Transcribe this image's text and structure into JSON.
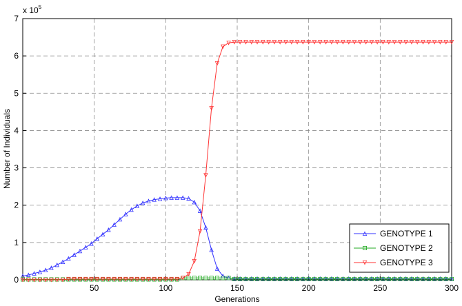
{
  "chart_data": {
    "type": "line",
    "xlabel": "Generations",
    "ylabel": "Number of Individuals",
    "y_multiplier": {
      "base": "x 10",
      "exponent": "5"
    },
    "xlim": [
      0,
      300
    ],
    "xticks": [
      50,
      100,
      150,
      200,
      250,
      300
    ],
    "ylim": [
      0,
      7
    ],
    "yticks": [
      0,
      1,
      2,
      3,
      4,
      5,
      6,
      7
    ],
    "grid": true,
    "legend": "lower right",
    "x": [
      0,
      4,
      8,
      12,
      16,
      20,
      24,
      28,
      32,
      36,
      40,
      44,
      48,
      52,
      56,
      60,
      64,
      68,
      72,
      76,
      80,
      84,
      88,
      92,
      96,
      100,
      104,
      108,
      112,
      116,
      120,
      124,
      128,
      132,
      136,
      140,
      144,
      148,
      152,
      156,
      160,
      164,
      168,
      172,
      176,
      180,
      184,
      188,
      192,
      196,
      200,
      204,
      208,
      212,
      216,
      220,
      224,
      228,
      232,
      236,
      240,
      244,
      248,
      252,
      256,
      260,
      264,
      268,
      272,
      276,
      280,
      284,
      288,
      292,
      296,
      300
    ],
    "series": [
      {
        "name": "GENOTYPE 1",
        "color": "#3333ff",
        "marker": "triangle-up",
        "values": [
          0.1,
          0.13,
          0.17,
          0.21,
          0.26,
          0.32,
          0.4,
          0.48,
          0.57,
          0.67,
          0.77,
          0.87,
          0.97,
          1.1,
          1.22,
          1.34,
          1.48,
          1.62,
          1.76,
          1.88,
          1.98,
          2.06,
          2.11,
          2.15,
          2.17,
          2.19,
          2.2,
          2.2,
          2.2,
          2.18,
          2.08,
          1.85,
          1.4,
          0.8,
          0.3,
          0.1,
          0.05,
          0.03,
          0.03,
          0.03,
          0.03,
          0.03,
          0.03,
          0.03,
          0.03,
          0.03,
          0.03,
          0.03,
          0.03,
          0.03,
          0.03,
          0.03,
          0.03,
          0.03,
          0.03,
          0.03,
          0.03,
          0.03,
          0.03,
          0.03,
          0.03,
          0.03,
          0.03,
          0.03,
          0.03,
          0.03,
          0.03,
          0.03,
          0.03,
          0.03,
          0.03,
          0.03,
          0.03,
          0.03,
          0.03,
          0.03
        ]
      },
      {
        "name": "GENOTYPE 2",
        "color": "#22aa22",
        "marker": "square",
        "values": [
          0.01,
          0.01,
          0.01,
          0.01,
          0.01,
          0.01,
          0.01,
          0.01,
          0.01,
          0.01,
          0.01,
          0.01,
          0.01,
          0.01,
          0.01,
          0.01,
          0.01,
          0.01,
          0.01,
          0.01,
          0.01,
          0.01,
          0.01,
          0.01,
          0.01,
          0.01,
          0.01,
          0.01,
          0.05,
          0.05,
          0.05,
          0.05,
          0.05,
          0.05,
          0.05,
          0.05,
          0.05,
          0.02,
          0.02,
          0.02,
          0.02,
          0.02,
          0.02,
          0.02,
          0.02,
          0.02,
          0.02,
          0.02,
          0.02,
          0.02,
          0.02,
          0.02,
          0.02,
          0.02,
          0.02,
          0.02,
          0.02,
          0.02,
          0.02,
          0.02,
          0.02,
          0.02,
          0.02,
          0.02,
          0.02,
          0.02,
          0.02,
          0.02,
          0.02,
          0.02,
          0.02,
          0.02,
          0.02,
          0.02,
          0.02,
          0.02
        ]
      },
      {
        "name": "GENOTYPE 3",
        "color": "#ff3333",
        "marker": "triangle-down",
        "values": [
          0,
          0,
          0,
          0,
          0,
          0,
          0,
          0,
          0.02,
          0.02,
          0.02,
          0.02,
          0.02,
          0.02,
          0.02,
          0.02,
          0.02,
          0.02,
          0.02,
          0.02,
          0.02,
          0.02,
          0.02,
          0.02,
          0.02,
          0.02,
          0.02,
          0.02,
          0.05,
          0.15,
          0.5,
          1.3,
          2.8,
          4.6,
          5.8,
          6.25,
          6.35,
          6.37,
          6.37,
          6.37,
          6.37,
          6.37,
          6.37,
          6.37,
          6.37,
          6.37,
          6.37,
          6.37,
          6.37,
          6.37,
          6.37,
          6.37,
          6.37,
          6.37,
          6.37,
          6.37,
          6.37,
          6.37,
          6.37,
          6.37,
          6.37,
          6.37,
          6.37,
          6.37,
          6.37,
          6.37,
          6.37,
          6.37,
          6.37,
          6.37,
          6.37,
          6.37,
          6.37,
          6.37,
          6.37,
          6.37
        ]
      }
    ]
  }
}
